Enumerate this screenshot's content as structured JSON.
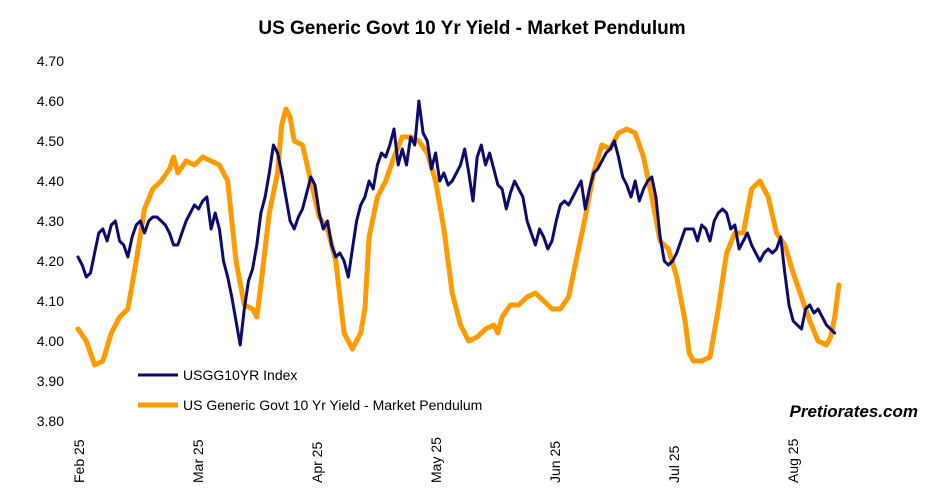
{
  "colors": {
    "navy": "#0b0b6e",
    "orange": "#ff9a00",
    "background": "#ffffff",
    "text": "#000000"
  },
  "chart_data": {
    "type": "line",
    "title": "US Generic Govt 10 Yr Yield - Market Pendulum",
    "xlabel": "",
    "ylabel": "",
    "ylim": [
      3.8,
      4.7
    ],
    "yticks": [
      "4.70",
      "4.60",
      "4.50",
      "4.40",
      "4.30",
      "4.20",
      "4.10",
      "4.00",
      "3.90",
      "3.80"
    ],
    "xticks": [
      "Feb 25",
      "Mar 25",
      "Apr 25",
      "May 25",
      "Jun 25",
      "Jul 25",
      "Aug 25"
    ],
    "grid": false,
    "legend_position": "bottom-left",
    "watermark": "Pretiorates.com",
    "series": [
      {
        "name": "USGG10YR Index",
        "color": "#0b0b6e",
        "points": [
          [
            0,
            4.21
          ],
          [
            1,
            4.19
          ],
          [
            2,
            4.16
          ],
          [
            3,
            4.17
          ],
          [
            4,
            4.22
          ],
          [
            5,
            4.27
          ],
          [
            6,
            4.28
          ],
          [
            7,
            4.25
          ],
          [
            8,
            4.29
          ],
          [
            9,
            4.3
          ],
          [
            10,
            4.25
          ],
          [
            11,
            4.24
          ],
          [
            12,
            4.21
          ],
          [
            13,
            4.26
          ],
          [
            14,
            4.29
          ],
          [
            15,
            4.3
          ],
          [
            16,
            4.27
          ],
          [
            17,
            4.3
          ],
          [
            18,
            4.31
          ],
          [
            19,
            4.31
          ],
          [
            20,
            4.3
          ],
          [
            21,
            4.29
          ],
          [
            22,
            4.27
          ],
          [
            23,
            4.24
          ],
          [
            24,
            4.24
          ],
          [
            25,
            4.27
          ],
          [
            26,
            4.3
          ],
          [
            27,
            4.32
          ],
          [
            28,
            4.34
          ],
          [
            29,
            4.33
          ],
          [
            30,
            4.35
          ],
          [
            31,
            4.36
          ],
          [
            32,
            4.28
          ],
          [
            33,
            4.32
          ],
          [
            34,
            4.28
          ],
          [
            35,
            4.2
          ],
          [
            36,
            4.16
          ],
          [
            37,
            4.11
          ],
          [
            38,
            4.05
          ],
          [
            39,
            3.99
          ],
          [
            40,
            4.08
          ],
          [
            41,
            4.15
          ],
          [
            42,
            4.18
          ],
          [
            43,
            4.24
          ],
          [
            44,
            4.32
          ],
          [
            45,
            4.36
          ],
          [
            46,
            4.42
          ],
          [
            47,
            4.49
          ],
          [
            48,
            4.47
          ],
          [
            49,
            4.42
          ],
          [
            50,
            4.36
          ],
          [
            51,
            4.3
          ],
          [
            52,
            4.28
          ],
          [
            53,
            4.31
          ],
          [
            54,
            4.33
          ],
          [
            55,
            4.37
          ],
          [
            56,
            4.41
          ],
          [
            57,
            4.39
          ],
          [
            58,
            4.32
          ],
          [
            59,
            4.28
          ],
          [
            60,
            4.3
          ],
          [
            61,
            4.24
          ],
          [
            62,
            4.21
          ],
          [
            63,
            4.22
          ],
          [
            64,
            4.2
          ],
          [
            65,
            4.16
          ],
          [
            66,
            4.23
          ],
          [
            67,
            4.3
          ],
          [
            68,
            4.34
          ],
          [
            69,
            4.36
          ],
          [
            70,
            4.4
          ],
          [
            71,
            4.38
          ],
          [
            72,
            4.44
          ],
          [
            73,
            4.47
          ],
          [
            74,
            4.46
          ],
          [
            75,
            4.49
          ],
          [
            76,
            4.53
          ],
          [
            77,
            4.44
          ],
          [
            78,
            4.48
          ],
          [
            79,
            4.44
          ],
          [
            80,
            4.51
          ],
          [
            81,
            4.49
          ],
          [
            82,
            4.6
          ],
          [
            83,
            4.52
          ],
          [
            84,
            4.5
          ],
          [
            85,
            4.43
          ],
          [
            86,
            4.47
          ],
          [
            87,
            4.4
          ],
          [
            88,
            4.42
          ],
          [
            89,
            4.39
          ],
          [
            90,
            4.4
          ],
          [
            91,
            4.42
          ],
          [
            92,
            4.44
          ],
          [
            93,
            4.48
          ],
          [
            94,
            4.42
          ],
          [
            95,
            4.35
          ],
          [
            96,
            4.46
          ],
          [
            97,
            4.49
          ],
          [
            98,
            4.44
          ],
          [
            99,
            4.47
          ],
          [
            100,
            4.43
          ],
          [
            101,
            4.39
          ],
          [
            102,
            4.38
          ],
          [
            103,
            4.33
          ],
          [
            104,
            4.37
          ],
          [
            105,
            4.4
          ],
          [
            106,
            4.38
          ],
          [
            107,
            4.36
          ],
          [
            108,
            4.3
          ],
          [
            109,
            4.27
          ],
          [
            110,
            4.24
          ],
          [
            111,
            4.28
          ],
          [
            112,
            4.26
          ],
          [
            113,
            4.23
          ],
          [
            114,
            4.25
          ],
          [
            115,
            4.3
          ],
          [
            116,
            4.34
          ],
          [
            117,
            4.35
          ],
          [
            118,
            4.34
          ],
          [
            119,
            4.36
          ],
          [
            120,
            4.38
          ],
          [
            121,
            4.4
          ],
          [
            122,
            4.33
          ],
          [
            123,
            4.38
          ],
          [
            124,
            4.42
          ],
          [
            125,
            4.43
          ],
          [
            126,
            4.45
          ],
          [
            127,
            4.47
          ],
          [
            128,
            4.48
          ],
          [
            129,
            4.5
          ],
          [
            130,
            4.46
          ],
          [
            131,
            4.41
          ],
          [
            132,
            4.39
          ],
          [
            133,
            4.36
          ],
          [
            134,
            4.4
          ],
          [
            135,
            4.35
          ],
          [
            136,
            4.38
          ],
          [
            137,
            4.4
          ],
          [
            138,
            4.41
          ],
          [
            139,
            4.36
          ],
          [
            140,
            4.26
          ],
          [
            141,
            4.2
          ],
          [
            142,
            4.19
          ],
          [
            143,
            4.2
          ],
          [
            144,
            4.22
          ],
          [
            145,
            4.25
          ],
          [
            146,
            4.28
          ],
          [
            147,
            4.28
          ],
          [
            148,
            4.28
          ],
          [
            149,
            4.25
          ],
          [
            150,
            4.29
          ],
          [
            151,
            4.28
          ],
          [
            152,
            4.25
          ],
          [
            153,
            4.3
          ],
          [
            154,
            4.32
          ],
          [
            155,
            4.33
          ],
          [
            156,
            4.32
          ],
          [
            157,
            4.28
          ],
          [
            158,
            4.29
          ],
          [
            159,
            4.23
          ],
          [
            160,
            4.25
          ],
          [
            161,
            4.27
          ],
          [
            162,
            4.24
          ],
          [
            163,
            4.22
          ],
          [
            164,
            4.2
          ],
          [
            165,
            4.22
          ],
          [
            166,
            4.23
          ],
          [
            167,
            4.22
          ],
          [
            168,
            4.23
          ],
          [
            169,
            4.26
          ],
          [
            170,
            4.17
          ],
          [
            171,
            4.09
          ],
          [
            172,
            4.05
          ],
          [
            173,
            4.04
          ],
          [
            174,
            4.03
          ],
          [
            175,
            4.08
          ],
          [
            176,
            4.09
          ],
          [
            177,
            4.07
          ],
          [
            178,
            4.08
          ],
          [
            179,
            4.06
          ],
          [
            180,
            4.04
          ],
          [
            181,
            4.03
          ],
          [
            182,
            4.02
          ]
        ]
      },
      {
        "name": "US Generic Govt 10 Yr Yield - Market Pendulum",
        "color": "#ff9a00",
        "points": [
          [
            0,
            4.03
          ],
          [
            2,
            4.0
          ],
          [
            4,
            3.94
          ],
          [
            6,
            3.95
          ],
          [
            8,
            4.02
          ],
          [
            10,
            4.06
          ],
          [
            12,
            4.08
          ],
          [
            14,
            4.2
          ],
          [
            16,
            4.33
          ],
          [
            18,
            4.38
          ],
          [
            20,
            4.4
          ],
          [
            22,
            4.43
          ],
          [
            23,
            4.46
          ],
          [
            24,
            4.42
          ],
          [
            26,
            4.45
          ],
          [
            28,
            4.44
          ],
          [
            30,
            4.46
          ],
          [
            32,
            4.45
          ],
          [
            34,
            4.44
          ],
          [
            36,
            4.4
          ],
          [
            38,
            4.2
          ],
          [
            40,
            4.09
          ],
          [
            42,
            4.08
          ],
          [
            43,
            4.06
          ],
          [
            44,
            4.14
          ],
          [
            46,
            4.32
          ],
          [
            48,
            4.42
          ],
          [
            49,
            4.54
          ],
          [
            50,
            4.58
          ],
          [
            51,
            4.56
          ],
          [
            52,
            4.5
          ],
          [
            54,
            4.49
          ],
          [
            56,
            4.4
          ],
          [
            58,
            4.31
          ],
          [
            60,
            4.28
          ],
          [
            62,
            4.2
          ],
          [
            64,
            4.02
          ],
          [
            66,
            3.98
          ],
          [
            68,
            4.02
          ],
          [
            69,
            4.08
          ],
          [
            70,
            4.26
          ],
          [
            72,
            4.36
          ],
          [
            74,
            4.4
          ],
          [
            76,
            4.46
          ],
          [
            78,
            4.51
          ],
          [
            80,
            4.51
          ],
          [
            82,
            4.5
          ],
          [
            84,
            4.47
          ],
          [
            86,
            4.4
          ],
          [
            88,
            4.28
          ],
          [
            90,
            4.12
          ],
          [
            92,
            4.04
          ],
          [
            94,
            4.0
          ],
          [
            96,
            4.01
          ],
          [
            98,
            4.03
          ],
          [
            100,
            4.04
          ],
          [
            101,
            4.02
          ],
          [
            102,
            4.06
          ],
          [
            104,
            4.09
          ],
          [
            106,
            4.09
          ],
          [
            108,
            4.11
          ],
          [
            110,
            4.12
          ],
          [
            112,
            4.1
          ],
          [
            114,
            4.08
          ],
          [
            116,
            4.08
          ],
          [
            118,
            4.11
          ],
          [
            120,
            4.21
          ],
          [
            122,
            4.31
          ],
          [
            124,
            4.42
          ],
          [
            126,
            4.49
          ],
          [
            128,
            4.48
          ],
          [
            130,
            4.52
          ],
          [
            132,
            4.53
          ],
          [
            134,
            4.52
          ],
          [
            136,
            4.46
          ],
          [
            138,
            4.36
          ],
          [
            140,
            4.25
          ],
          [
            142,
            4.23
          ],
          [
            144,
            4.16
          ],
          [
            146,
            4.05
          ],
          [
            147,
            3.97
          ],
          [
            148,
            3.95
          ],
          [
            150,
            3.95
          ],
          [
            152,
            3.96
          ],
          [
            154,
            4.08
          ],
          [
            156,
            4.22
          ],
          [
            158,
            4.27
          ],
          [
            160,
            4.27
          ],
          [
            162,
            4.38
          ],
          [
            164,
            4.4
          ],
          [
            166,
            4.36
          ],
          [
            168,
            4.27
          ],
          [
            170,
            4.24
          ],
          [
            172,
            4.17
          ],
          [
            174,
            4.11
          ],
          [
            176,
            4.05
          ],
          [
            178,
            4.0
          ],
          [
            180,
            3.99
          ],
          [
            181,
            4.01
          ],
          [
            182,
            4.06
          ],
          [
            183,
            4.14
          ]
        ]
      }
    ]
  }
}
